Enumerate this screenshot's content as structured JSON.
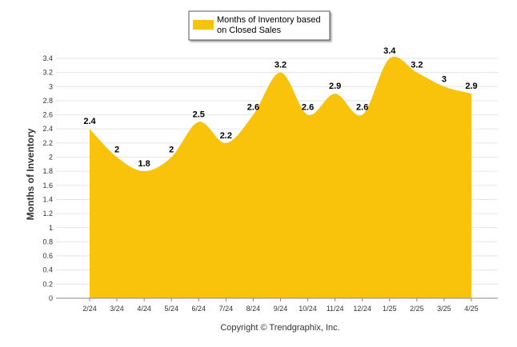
{
  "chart_data": {
    "type": "area",
    "categories": [
      "2/24",
      "3/24",
      "4/24",
      "5/24",
      "6/24",
      "7/24",
      "8/24",
      "9/24",
      "10/24",
      "11/24",
      "12/24",
      "1/25",
      "2/25",
      "3/25",
      "4/25"
    ],
    "series": [
      {
        "name": "Months of Inventory based on Closed Sales",
        "values": [
          2.4,
          2,
          1.8,
          2,
          2.5,
          2.2,
          2.6,
          3.2,
          2.6,
          2.9,
          2.6,
          3.4,
          3.2,
          3,
          2.9
        ]
      }
    ],
    "data_labels": [
      "2.4",
      "2",
      "1.8",
      "2",
      "2.5",
      "2.2",
      "2.6",
      "3.2",
      "2.6",
      "2.9",
      "2.6",
      "3.4",
      "3.2",
      "3",
      "2.9"
    ],
    "ylabel": "Months of Inventory",
    "ylim": [
      0,
      3.4
    ],
    "yticks": [
      "0",
      "0.2",
      "0.4",
      "0.6",
      "0.8",
      "1",
      "1.2",
      "1.4",
      "1.6",
      "1.8",
      "2",
      "2.2",
      "2.4",
      "2.6",
      "2.8",
      "3",
      "3.2",
      "3.4"
    ],
    "grid": true,
    "legend": {
      "placement": "top-center",
      "line1": "Months of Inventory based",
      "line2": "on Closed Sales"
    },
    "colors": {
      "area": "#F8C30A",
      "grid": "#E6E6E6",
      "axis": "#888888"
    },
    "copyright": "Copyright © Trendgraphix, Inc."
  }
}
